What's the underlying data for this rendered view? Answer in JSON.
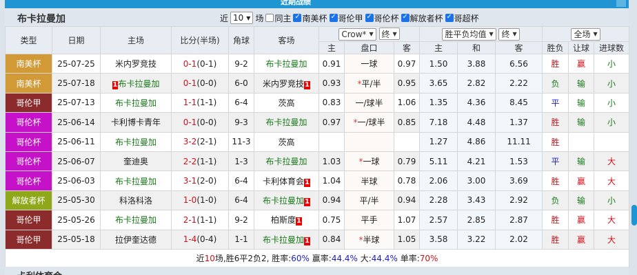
{
  "window": {
    "title": "近期战绩"
  },
  "section": {
    "title": "布卡拉曼加",
    "recent_label": "近",
    "count": "10",
    "matches_label": "场",
    "filters": [
      {
        "label": "同主",
        "checked": false
      },
      {
        "label": "南美杯",
        "checked": true
      },
      {
        "label": "哥伦甲",
        "checked": true
      },
      {
        "label": "哥伦杯",
        "checked": true
      },
      {
        "label": "解放者杯",
        "checked": true
      },
      {
        "label": "哥超杯",
        "checked": true
      }
    ]
  },
  "selects": {
    "company": "Crow*",
    "company_stage": "终",
    "odds_type": "胜平负均值",
    "odds_stage": "终",
    "period": "全场"
  },
  "headers": {
    "type": "类型",
    "date": "日期",
    "home": "主场",
    "score": "比分(半场)",
    "corners": "角球",
    "away": "客场",
    "ah_home": "主",
    "handicap": "盘口",
    "ah_away": "客",
    "eu_home": "主",
    "eu_draw": "和",
    "eu_away": "客",
    "result": "胜负",
    "ah_result": "让球",
    "goals": "进球数"
  },
  "colors": {
    "南美杯": "#d19a36",
    "哥伦甲": "#8b2b2b",
    "哥伦杯": "#c512c8",
    "解放者杯": "#8fa81a"
  },
  "rows": [
    {
      "type": "南美杯",
      "date": "25-07-25",
      "home": "米内罗竞技",
      "home_team": false,
      "home_badge": "",
      "score": "0-1",
      "half": "(0-1)",
      "corners": "9-2",
      "away": "布卡拉曼加",
      "away_team": true,
      "away_badge": "",
      "ah_home": "0.91",
      "handicap": "一球",
      "star": false,
      "ah_away": "0.97",
      "eu_home": "1.50",
      "eu_draw": "3.88",
      "eu_away": "6.56",
      "result": "胜",
      "ah_result": "赢",
      "goals": "小"
    },
    {
      "type": "南美杯",
      "date": "25-07-18",
      "home": "布卡拉曼加",
      "home_team": true,
      "home_badge": "1",
      "score": "0-1",
      "half": "(0-0)",
      "corners": "6-0",
      "away": "米内罗竞技",
      "away_team": false,
      "away_badge": "1",
      "ah_home": "0.93",
      "handicap": "平/半",
      "star": true,
      "ah_away": "0.95",
      "eu_home": "3.65",
      "eu_draw": "2.82",
      "eu_away": "2.22",
      "result": "负",
      "ah_result": "输",
      "goals": "小"
    },
    {
      "type": "哥伦甲",
      "date": "25-07-13",
      "home": "布卡拉曼加",
      "home_team": true,
      "home_badge": "",
      "score": "1-1",
      "half": "(1-1)",
      "corners": "6-4",
      "away": "茨高",
      "away_team": false,
      "away_badge": "",
      "ah_home": "0.83",
      "handicap": "一/球半",
      "star": false,
      "ah_away": "1.06",
      "eu_home": "1.35",
      "eu_draw": "4.36",
      "eu_away": "8.45",
      "result": "平",
      "ah_result": "输",
      "goals": "小"
    },
    {
      "type": "哥伦杯",
      "date": "25-06-14",
      "home": "卡利博卡青年",
      "home_team": false,
      "home_badge": "",
      "score": "0-1",
      "half": "(0-0)",
      "corners": "9-3",
      "away": "布卡拉曼加",
      "away_team": true,
      "away_badge": "",
      "ah_home": "0.97",
      "handicap": "一/球半",
      "star": true,
      "ah_away": "0.85",
      "eu_home": "7.18",
      "eu_draw": "4.48",
      "eu_away": "1.37",
      "result": "胜",
      "ah_result": "输",
      "goals": "小"
    },
    {
      "type": "哥伦杯",
      "date": "25-06-11",
      "home": "布卡拉曼加",
      "home_team": true,
      "home_badge": "",
      "score": "3-2",
      "half": "(2-1)",
      "corners": "11-3",
      "away": "茨高",
      "away_team": false,
      "away_badge": "",
      "ah_home": "",
      "handicap": "",
      "star": false,
      "ah_away": "",
      "eu_home": "1.27",
      "eu_draw": "4.86",
      "eu_away": "11.11",
      "result": "胜",
      "ah_result": "",
      "goals": ""
    },
    {
      "type": "哥伦杯",
      "date": "25-06-07",
      "home": "奎迪奥",
      "home_team": false,
      "home_badge": "",
      "score": "2-2",
      "half": "(1-1)",
      "corners": "1-3",
      "away": "布卡拉曼加",
      "away_team": true,
      "away_badge": "",
      "ah_home": "1.03",
      "handicap": "一球",
      "star": true,
      "ah_away": "0.79",
      "eu_home": "5.11",
      "eu_draw": "4.21",
      "eu_away": "1.53",
      "result": "平",
      "ah_result": "输",
      "goals": "大"
    },
    {
      "type": "哥伦杯",
      "date": "25-06-03",
      "home": "布卡拉曼加",
      "home_team": true,
      "home_badge": "",
      "score": "3-1",
      "half": "(2-0)",
      "corners": "6-4",
      "away": "卡利体育会",
      "away_team": false,
      "away_badge": "1",
      "ah_home": "1.04",
      "handicap": "半球",
      "star": false,
      "ah_away": "0.78",
      "eu_home": "2.06",
      "eu_draw": "3.00",
      "eu_away": "3.69",
      "result": "胜",
      "ah_result": "赢",
      "goals": "大"
    },
    {
      "type": "解放者杯",
      "date": "25-05-30",
      "home": "科洛科洛",
      "home_team": false,
      "home_badge": "",
      "score": "1-0",
      "half": "(1-0)",
      "corners": "6-4",
      "away": "布卡拉曼加",
      "away_team": true,
      "away_badge": "1",
      "ah_home": "0.94",
      "handicap": "平/半",
      "star": false,
      "ah_away": "0.94",
      "eu_home": "2.28",
      "eu_draw": "3.43",
      "eu_away": "2.92",
      "result": "负",
      "ah_result": "输",
      "goals": "小"
    },
    {
      "type": "哥伦甲",
      "date": "25-05-26",
      "home": "布卡拉曼加",
      "home_team": true,
      "home_badge": "",
      "score": "2-1",
      "half": "(1-1)",
      "corners": "9-2",
      "away": "柏斯度",
      "away_team": false,
      "away_badge": "1",
      "ah_home": "0.75",
      "handicap": "平手",
      "star": false,
      "ah_away": "1.07",
      "eu_home": "2.57",
      "eu_draw": "2.85",
      "eu_away": "2.87",
      "result": "胜",
      "ah_result": "赢",
      "goals": "大"
    },
    {
      "type": "哥伦甲",
      "date": "25-05-18",
      "home": "拉伊奎达德",
      "home_team": false,
      "home_badge": "",
      "score": "1-4",
      "half": "(0-4)",
      "corners": "1-1",
      "away": "布卡拉曼加",
      "away_team": true,
      "away_badge": "1",
      "ah_home": "0.84",
      "handicap": "半球",
      "star": true,
      "ah_away": "1.05",
      "eu_home": "3.58",
      "eu_draw": "3.22",
      "eu_away": "2.02",
      "result": "胜",
      "ah_result": "赢",
      "goals": "大"
    }
  ],
  "summary": {
    "p1": "近",
    "n": "10",
    "p2": "场,胜6平2负2, 胜率:",
    "win_rate": "60%",
    "p3": " 赢率:",
    "ah_rate": "44.4%",
    "p4": " 大:",
    "over_rate": "44.4%",
    "p5": " 单率:",
    "odd_rate": "70%"
  },
  "next_section": {
    "title": "卡利体育会"
  }
}
